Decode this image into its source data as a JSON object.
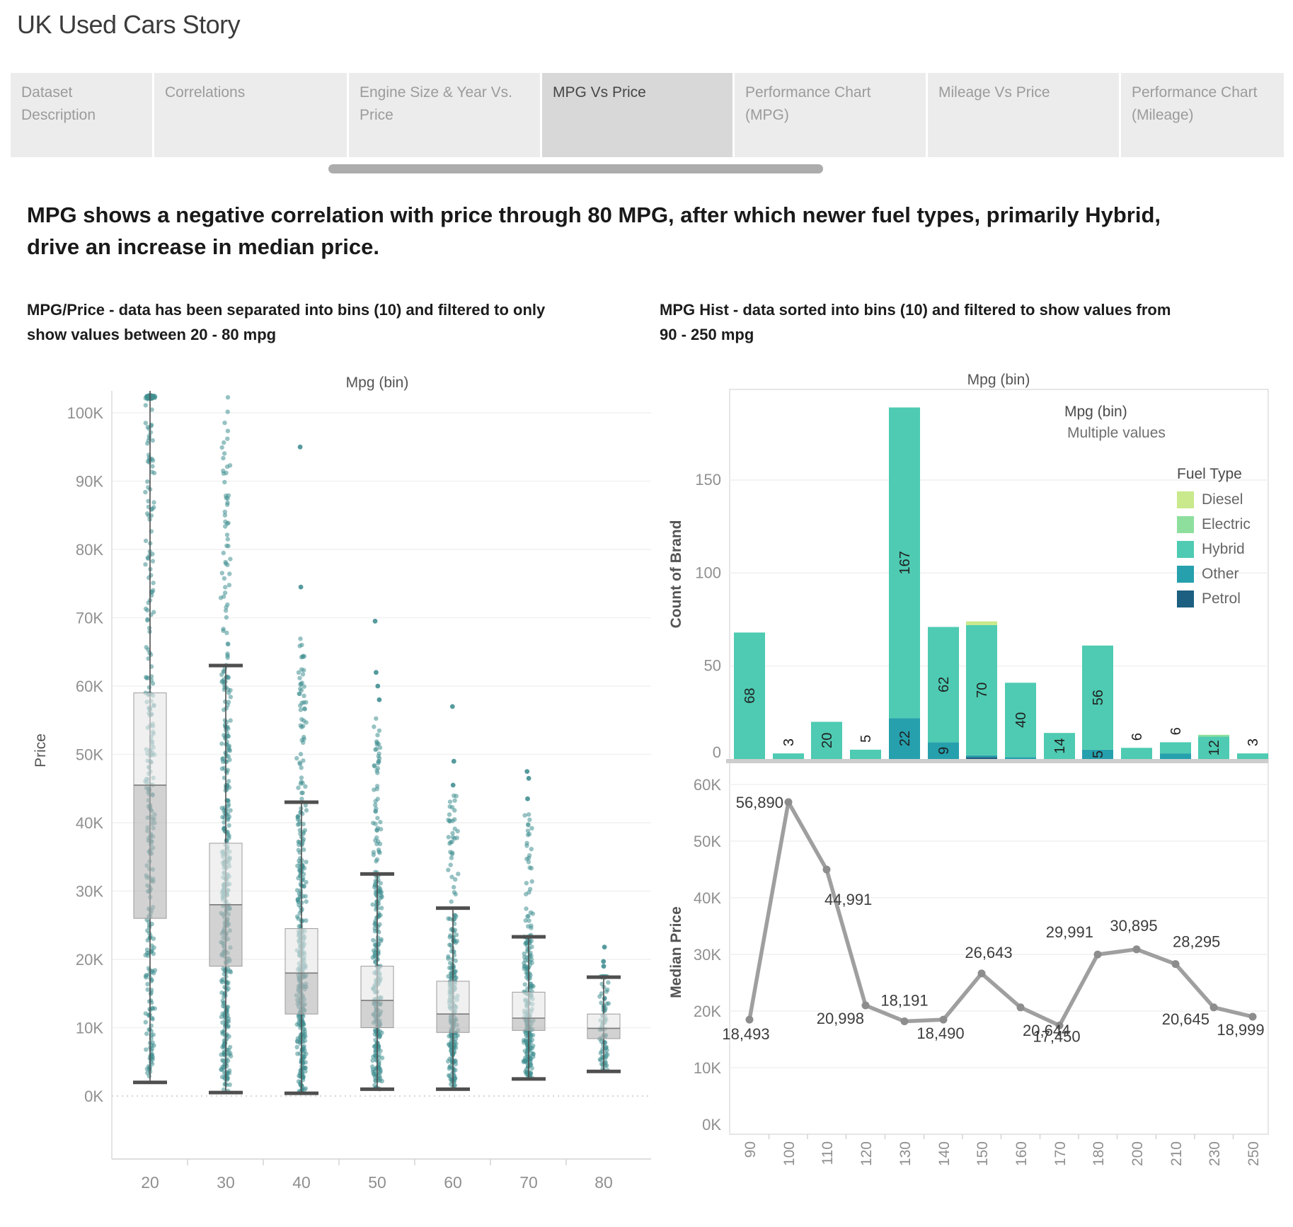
{
  "page_title": "UK Used Cars Story",
  "tabs": [
    {
      "label": "Dataset Description",
      "active": false
    },
    {
      "label": "Correlations",
      "active": false
    },
    {
      "label": "Engine Size & Year Vs. Price",
      "active": false
    },
    {
      "label": "MPG Vs Price",
      "active": true
    },
    {
      "label": "Performance Chart (MPG)",
      "active": false
    },
    {
      "label": "Mileage Vs Price",
      "active": false
    },
    {
      "label": "Performance Chart (Mileage)",
      "active": false
    }
  ],
  "headline": "MPG shows a negative correlation with price through 80 MPG, after which newer fuel types, primarily Hybrid, drive an increase in median price.",
  "subtitles": {
    "left": "MPG/Price - data has been separated into bins (10) and filtered to only show values between 20 - 80 mpg",
    "right": "MPG Hist - data sorted into bins (10) and filtered to show values from 90 - 250 mpg"
  },
  "filter_card": {
    "title": "Mpg (bin)",
    "value": "Multiple values"
  },
  "legend": {
    "title": "Fuel Type",
    "items": [
      {
        "label": "Diesel",
        "color": "#c9e98c"
      },
      {
        "label": "Electric",
        "color": "#8edf9e"
      },
      {
        "label": "Hybrid",
        "color": "#4ecbb2"
      },
      {
        "label": "Other",
        "color": "#26a0ad"
      },
      {
        "label": "Petrol",
        "color": "#1d5f80"
      }
    ]
  },
  "colors": {
    "scatter_point": "#428f92",
    "line": "#9f9f9f",
    "line_point": "#8d8d8d",
    "box_upper": "#e6e6e6",
    "box_lower": "#b6b6b6",
    "whisker": "#4f4f4f"
  },
  "chart_data": [
    {
      "id": "mpg_price_boxplot",
      "type": "boxplot_scatter",
      "title": "Mpg (bin)",
      "ylabel": "Price",
      "yticks": [
        "0K",
        "10K",
        "20K",
        "30K",
        "40K",
        "50K",
        "60K",
        "70K",
        "80K",
        "90K",
        "100K"
      ],
      "ylim_thousands": [
        0,
        102.6
      ],
      "categories": [
        20,
        30,
        40,
        50,
        60,
        70,
        80
      ],
      "bins": [
        {
          "mpg": 20,
          "whisker_low": 2.0,
          "q1": 26.0,
          "median": 45.5,
          "q3": 59.0,
          "whisker_high": 102.0,
          "high_clipped": true,
          "dense_max": 102.6,
          "outliers": [],
          "n_points": 340
        },
        {
          "mpg": 30,
          "whisker_low": 0.5,
          "q1": 19.0,
          "median": 28.0,
          "q3": 37.0,
          "whisker_high": 63.0,
          "high_clipped": false,
          "dense_max": 102.6,
          "outliers": [],
          "n_points": 430
        },
        {
          "mpg": 40,
          "whisker_low": 0.4,
          "q1": 12.0,
          "median": 18.0,
          "q3": 24.5,
          "whisker_high": 43.0,
          "high_clipped": false,
          "dense_max": 67.0,
          "outliers": [
            74.5,
            95.0
          ],
          "n_points": 380
        },
        {
          "mpg": 50,
          "whisker_low": 1.0,
          "q1": 10.0,
          "median": 14.0,
          "q3": 19.0,
          "whisker_high": 32.5,
          "high_clipped": false,
          "dense_max": 56.0,
          "outliers": [
            58.0,
            60.0,
            62.0,
            69.5
          ],
          "n_points": 300
        },
        {
          "mpg": 60,
          "whisker_low": 1.0,
          "q1": 9.3,
          "median": 12.0,
          "q3": 16.8,
          "whisker_high": 27.5,
          "high_clipped": false,
          "dense_max": 44.0,
          "outliers": [
            45.5,
            49.0,
            57.0
          ],
          "n_points": 260
        },
        {
          "mpg": 70,
          "whisker_low": 2.5,
          "q1": 9.6,
          "median": 11.4,
          "q3": 15.2,
          "whisker_high": 23.3,
          "high_clipped": false,
          "dense_max": 41.5,
          "outliers": [
            43.5,
            46.5,
            47.5
          ],
          "n_points": 240
        },
        {
          "mpg": 80,
          "whisker_low": 3.6,
          "q1": 8.4,
          "median": 9.9,
          "q3": 12.0,
          "whisker_high": 17.4,
          "high_clipped": false,
          "dense_max": 17.5,
          "outliers": [
            19.0,
            19.7,
            21.8
          ],
          "n_points": 90
        }
      ]
    },
    {
      "id": "mpg_hist_stacked_bar",
      "type": "bar",
      "stacked": true,
      "title": "Mpg (bin)",
      "ylabel": "Count of Brand",
      "yticks": [
        0,
        50,
        100,
        150
      ],
      "ylim": [
        0,
        198
      ],
      "categories": [
        90,
        100,
        110,
        120,
        130,
        140,
        150,
        160,
        170,
        180,
        200,
        210,
        230,
        250
      ],
      "series": [
        {
          "name": "Petrol",
          "values": [
            0,
            0,
            0,
            0,
            0,
            0,
            1,
            0,
            0,
            0,
            0,
            0,
            0,
            0
          ]
        },
        {
          "name": "Other",
          "values": [
            0,
            0,
            0,
            0,
            22,
            9,
            1,
            1,
            0,
            5,
            0,
            3,
            0,
            0
          ]
        },
        {
          "name": "Hybrid",
          "values": [
            68,
            3,
            20,
            5,
            167,
            62,
            70,
            40,
            14,
            56,
            6,
            6,
            12,
            3
          ]
        },
        {
          "name": "Electric",
          "values": [
            0,
            0,
            0,
            0,
            0,
            0,
            0,
            0,
            0,
            0,
            0,
            0,
            1,
            0
          ]
        },
        {
          "name": "Diesel",
          "values": [
            0,
            0,
            0,
            0,
            0,
            0,
            2,
            0,
            0,
            0,
            0,
            0,
            0,
            0
          ]
        }
      ],
      "bar_labels": {
        "Hybrid": [
          "68",
          "3",
          "20",
          "5",
          "167",
          "62",
          "70",
          "40",
          "14",
          "56",
          "6",
          "6",
          "12",
          "3"
        ],
        "Other": [
          null,
          null,
          null,
          null,
          "22",
          "9",
          null,
          null,
          null,
          "5",
          null,
          null,
          null,
          null
        ]
      },
      "legend_position": "right"
    },
    {
      "id": "median_price_line",
      "type": "line",
      "ylabel": "Median Price",
      "yticks": [
        "0K",
        "10K",
        "20K",
        "30K",
        "40K",
        "50K",
        "60K"
      ],
      "ylim": [
        0,
        62000
      ],
      "x": [
        90,
        100,
        110,
        120,
        130,
        140,
        150,
        160,
        170,
        180,
        200,
        210,
        230,
        250
      ],
      "values": [
        18493,
        56890,
        44991,
        20998,
        18191,
        18490,
        26643,
        20644,
        17450,
        29991,
        30895,
        28295,
        20645,
        18999
      ],
      "labels": [
        "18,493",
        "56,890",
        "44,991",
        "20,998",
        "18,191",
        "18,490",
        "26,643",
        "20,644",
        "17,450",
        "29,991",
        "30,895",
        "28,295",
        "20,645",
        "18,999"
      ],
      "label_placements": [
        [
          "middle",
          -5,
          28
        ],
        [
          "end",
          -7,
          8
        ],
        [
          "start",
          -3,
          50
        ],
        [
          "end",
          -2,
          26
        ],
        [
          "middle",
          0,
          -22
        ],
        [
          "middle",
          -4,
          27
        ],
        [
          "middle",
          10,
          -22
        ],
        [
          "start",
          3,
          40
        ],
        [
          "middle",
          -4,
          23
        ],
        [
          "end",
          -6,
          -24
        ],
        [
          "middle",
          -4,
          -26
        ],
        [
          "start",
          -4,
          -24
        ],
        [
          "end",
          -6,
          24
        ],
        [
          "middle",
          -17,
          26
        ]
      ]
    }
  ]
}
